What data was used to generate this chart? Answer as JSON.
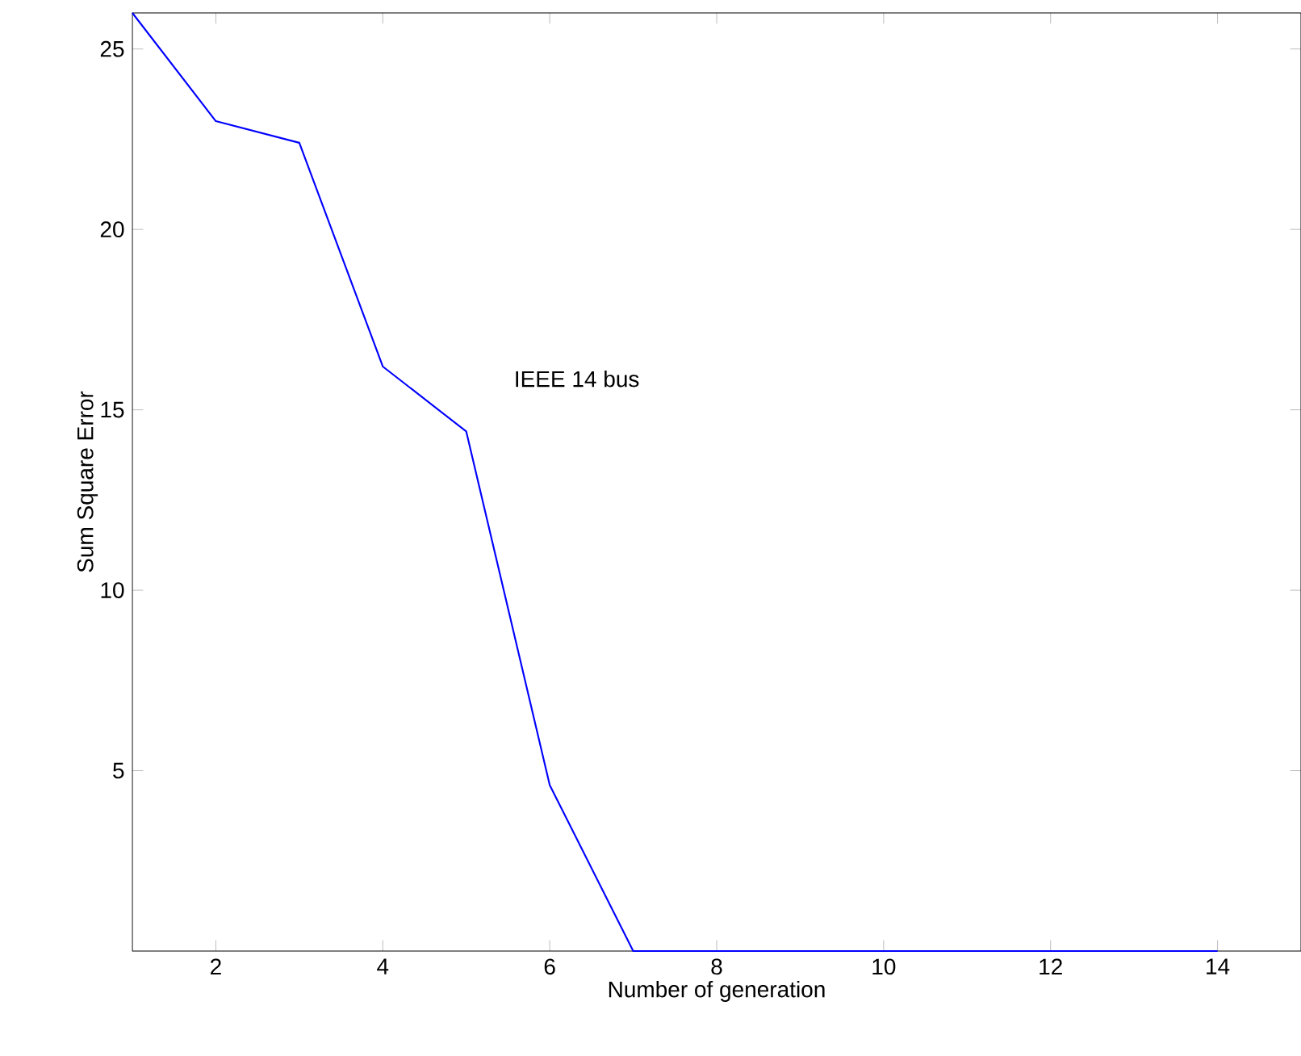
{
  "chart_data": {
    "type": "line",
    "xlabel": "Number of generation",
    "ylabel": "Sum Square Error",
    "x": [
      1,
      2,
      3,
      4,
      5,
      6,
      7,
      8,
      9,
      10,
      11,
      12,
      13,
      14
    ],
    "series": [
      {
        "color": "#0000ff",
        "values": [
          26,
          23,
          22.4,
          16.2,
          14.4,
          4.6,
          0,
          0,
          0,
          0,
          0,
          0,
          0,
          0
        ]
      }
    ],
    "xlim": [
      1,
      15
    ],
    "ylim": [
      0,
      26
    ],
    "xticks": [
      2,
      4,
      6,
      8,
      10,
      12,
      14
    ],
    "yticks": [
      5,
      10,
      15,
      20,
      25
    ],
    "annotations": [
      "IEEE 14 bus"
    ],
    "grid": false,
    "marker": "none",
    "line_style": "solid"
  }
}
